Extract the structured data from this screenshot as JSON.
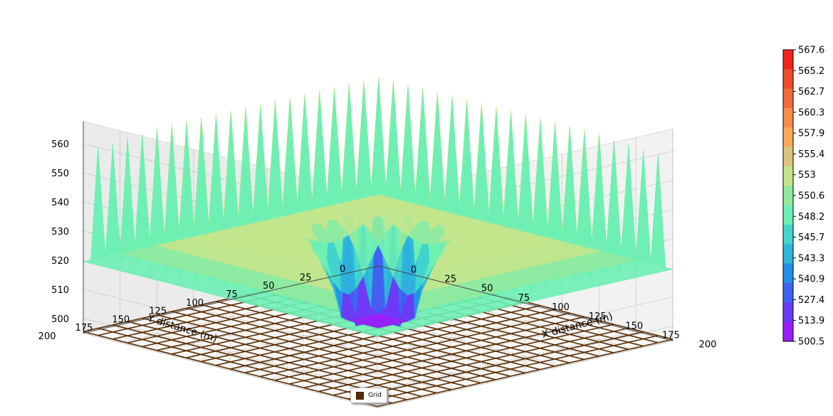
{
  "chart_data": {
    "type": "surface3d",
    "title": "",
    "xlabel": "X distance (m)",
    "ylabel": "Y distance (m)",
    "zlabel": "",
    "x_ticks": [
      "0",
      "25",
      "50",
      "75",
      "100",
      "125",
      "150",
      "175",
      "200"
    ],
    "y_ticks": [
      "0",
      "25",
      "50",
      "75",
      "100",
      "125",
      "150",
      "175",
      "200"
    ],
    "z_ticks": [
      "500",
      "510",
      "520",
      "530",
      "540",
      "550",
      "560"
    ],
    "xlim": [
      0,
      200
    ],
    "ylim": [
      0,
      200
    ],
    "zlim": [
      495,
      567.6
    ],
    "grid_cells": 20,
    "surface": {
      "base_level": 560,
      "center_min": 500.5,
      "corner_level": 515,
      "peak_level": 567.6,
      "trough_level": 530,
      "wells": "periodic drawdown cones around pumping wells, deepest at center (100,100)"
    },
    "colorbar": {
      "ticks": [
        "567.6",
        "565.2",
        "562.7",
        "560.3",
        "557.9",
        "555.4",
        "553",
        "550.6",
        "548.2",
        "545.7",
        "543.3",
        "540.9",
        "527.4",
        "513.9",
        "500.5"
      ],
      "colors": [
        "#f2231a",
        "#ec4c2c",
        "#f26a3c",
        "#f88c4c",
        "#fba85e",
        "#dac47c",
        "#c2e68c",
        "#90ea9e",
        "#6ef0b4",
        "#44d6cb",
        "#2cb8dc",
        "#228ee8",
        "#3f62f2",
        "#6a3cf6",
        "#9b1efa"
      ]
    },
    "legend": [
      {
        "name": "Grid",
        "color": "#5a2d00"
      }
    ],
    "legend_position": "bottom-center",
    "grid": true
  }
}
